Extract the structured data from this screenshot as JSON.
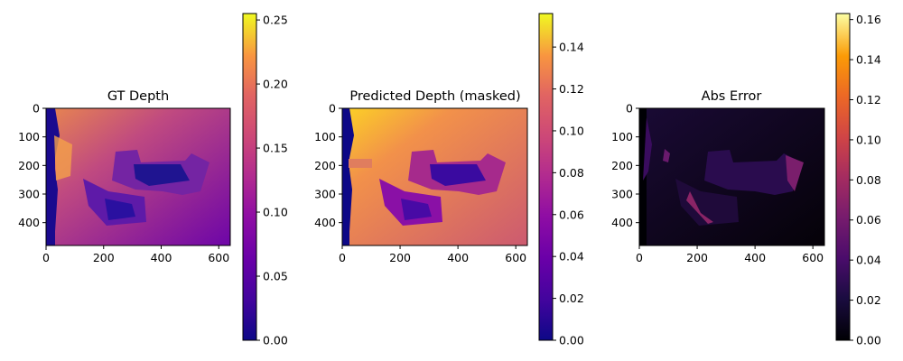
{
  "chart_data": [
    {
      "type": "heatmap",
      "title": "GT Depth",
      "colormap": "plasma",
      "image_size": [
        640,
        480
      ],
      "xticks": [
        "0",
        "200",
        "400",
        "600"
      ],
      "xtick_values": [
        0,
        200,
        400,
        600
      ],
      "yticks": [
        "0",
        "100",
        "200",
        "300",
        "400"
      ],
      "ytick_values": [
        0,
        100,
        200,
        300,
        400
      ],
      "colorbar": {
        "range": [
          0,
          0.255
        ],
        "ticks": [
          "0.00",
          "0.05",
          "0.10",
          "0.15",
          "0.20",
          "0.25"
        ],
        "tick_values": [
          0,
          0.05,
          0.1,
          0.15,
          0.2,
          0.25
        ]
      }
    },
    {
      "type": "heatmap",
      "title": "Predicted Depth (masked)",
      "colormap": "plasma",
      "image_size": [
        640,
        480
      ],
      "xticks": [
        "0",
        "200",
        "400",
        "600"
      ],
      "xtick_values": [
        0,
        200,
        400,
        600
      ],
      "yticks": [
        "0",
        "100",
        "200",
        "300",
        "400"
      ],
      "ytick_values": [
        0,
        100,
        200,
        300,
        400
      ],
      "colorbar": {
        "range": [
          0,
          0.156
        ],
        "ticks": [
          "0.00",
          "0.02",
          "0.04",
          "0.06",
          "0.08",
          "0.10",
          "0.12",
          "0.14"
        ],
        "tick_values": [
          0,
          0.02,
          0.04,
          0.06,
          0.08,
          0.1,
          0.12,
          0.14
        ]
      }
    },
    {
      "type": "heatmap",
      "title": "Abs Error",
      "colormap": "inferno",
      "image_size": [
        640,
        480
      ],
      "xticks": [
        "0",
        "200",
        "400",
        "600"
      ],
      "xtick_values": [
        0,
        200,
        400,
        600
      ],
      "yticks": [
        "0",
        "100",
        "200",
        "300",
        "400"
      ],
      "ytick_values": [
        0,
        100,
        200,
        300,
        400
      ],
      "colorbar": {
        "range": [
          0,
          0.163
        ],
        "ticks": [
          "0.00",
          "0.02",
          "0.04",
          "0.06",
          "0.08",
          "0.10",
          "0.12",
          "0.14",
          "0.16"
        ],
        "tick_values": [
          0,
          0.02,
          0.04,
          0.06,
          0.08,
          0.1,
          0.12,
          0.14,
          0.16
        ]
      }
    }
  ]
}
